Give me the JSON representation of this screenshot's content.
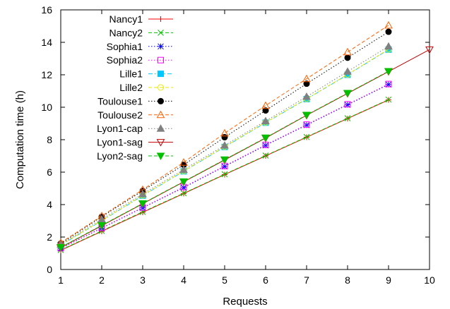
{
  "chart_data": {
    "type": "line",
    "xlabel": "Requests",
    "ylabel": "Computation time (h)",
    "xlim": [
      1,
      10
    ],
    "ylim": [
      0,
      16
    ],
    "x_ticks": [
      "1",
      "2",
      "3",
      "4",
      "5",
      "6",
      "7",
      "8",
      "9",
      "10"
    ],
    "y_ticks": [
      "0",
      "2",
      "4",
      "6",
      "8",
      "10",
      "12",
      "14",
      "16"
    ],
    "grid": false,
    "legend_position": "top-left",
    "series": [
      {
        "name": "Nancy1",
        "color": "#ff0000",
        "dash": "solid",
        "marker": "plus",
        "x": [
          1,
          2,
          3,
          4,
          5,
          6,
          7,
          8,
          9
        ],
        "y": [
          1.18,
          2.35,
          3.52,
          4.68,
          5.85,
          7.0,
          8.15,
          9.3,
          10.45
        ]
      },
      {
        "name": "Nancy2",
        "color": "#00c000",
        "dash": "dashed",
        "marker": "x",
        "x": [
          1,
          2,
          3,
          4,
          5,
          6,
          7,
          8,
          9
        ],
        "y": [
          1.2,
          2.38,
          3.55,
          4.7,
          5.87,
          7.02,
          8.17,
          9.32,
          10.47
        ]
      },
      {
        "name": "Sophia1",
        "color": "#0000ff",
        "dash": "dotted",
        "marker": "asterisk",
        "x": [
          1,
          2,
          3,
          4,
          5,
          6,
          7,
          8,
          9
        ],
        "y": [
          1.3,
          2.55,
          3.8,
          5.05,
          6.35,
          7.65,
          8.9,
          10.15,
          11.4
        ]
      },
      {
        "name": "Sophia2",
        "color": "#ff00ff",
        "dash": "dotted",
        "marker": "square",
        "x": [
          1,
          2,
          3,
          4,
          5,
          6,
          7,
          8,
          9
        ],
        "y": [
          1.32,
          2.57,
          3.82,
          5.08,
          6.38,
          7.68,
          8.93,
          10.18,
          11.43
        ]
      },
      {
        "name": "Lille1",
        "color": "#00c8ff",
        "dash": "dashdot",
        "marker": "filled-square",
        "x": [
          1,
          2,
          3,
          4,
          5,
          6,
          7,
          8,
          9
        ],
        "y": [
          1.5,
          3.0,
          4.55,
          6.05,
          7.55,
          9.05,
          10.5,
          12.0,
          13.55
        ]
      },
      {
        "name": "Lille2",
        "color": "#e8e800",
        "dash": "dashed",
        "marker": "circle",
        "x": [
          1,
          2,
          3,
          4,
          5,
          6,
          7,
          8,
          9
        ],
        "y": [
          1.52,
          3.02,
          4.57,
          6.07,
          7.57,
          9.07,
          10.52,
          12.02,
          13.57
        ]
      },
      {
        "name": "Toulouse1",
        "color": "#000000",
        "dash": "dotted",
        "marker": "filled-circle",
        "x": [
          1,
          2,
          3,
          4,
          5,
          6,
          7,
          8,
          9
        ],
        "y": [
          1.6,
          3.25,
          4.85,
          6.45,
          8.15,
          9.8,
          11.45,
          13.05,
          14.65
        ]
      },
      {
        "name": "Toulouse2",
        "color": "#ff6000",
        "dash": "dashed",
        "marker": "triangle",
        "x": [
          1,
          2,
          3,
          4,
          5,
          6,
          7,
          8,
          9
        ],
        "y": [
          1.65,
          3.3,
          4.92,
          6.6,
          8.4,
          10.1,
          11.75,
          13.4,
          15.05
        ]
      },
      {
        "name": "Lyon1-cap",
        "color": "#808080",
        "dash": "dotted",
        "marker": "filled-triangle",
        "x": [
          1,
          2,
          3,
          4,
          5,
          6,
          7,
          8,
          9
        ],
        "y": [
          1.55,
          3.1,
          4.65,
          6.15,
          7.65,
          9.15,
          10.65,
          12.2,
          13.75
        ]
      },
      {
        "name": "Lyon1-sag",
        "color": "#c00000",
        "dash": "solid",
        "marker": "inv-triangle",
        "x": [
          1,
          2,
          3,
          4,
          5,
          6,
          7,
          8,
          9,
          10
        ],
        "y": [
          1.35,
          2.7,
          4.05,
          5.4,
          6.75,
          8.1,
          9.5,
          10.85,
          12.2,
          13.55
        ]
      },
      {
        "name": "Lyon2-sag",
        "color": "#00c000",
        "dash": "dashed",
        "marker": "filled-inv-triangle",
        "x": [
          1,
          2,
          3,
          4,
          5,
          6,
          7,
          8,
          9
        ],
        "y": [
          1.37,
          2.72,
          4.07,
          5.42,
          6.77,
          8.12,
          9.52,
          10.87,
          12.22
        ]
      }
    ]
  }
}
